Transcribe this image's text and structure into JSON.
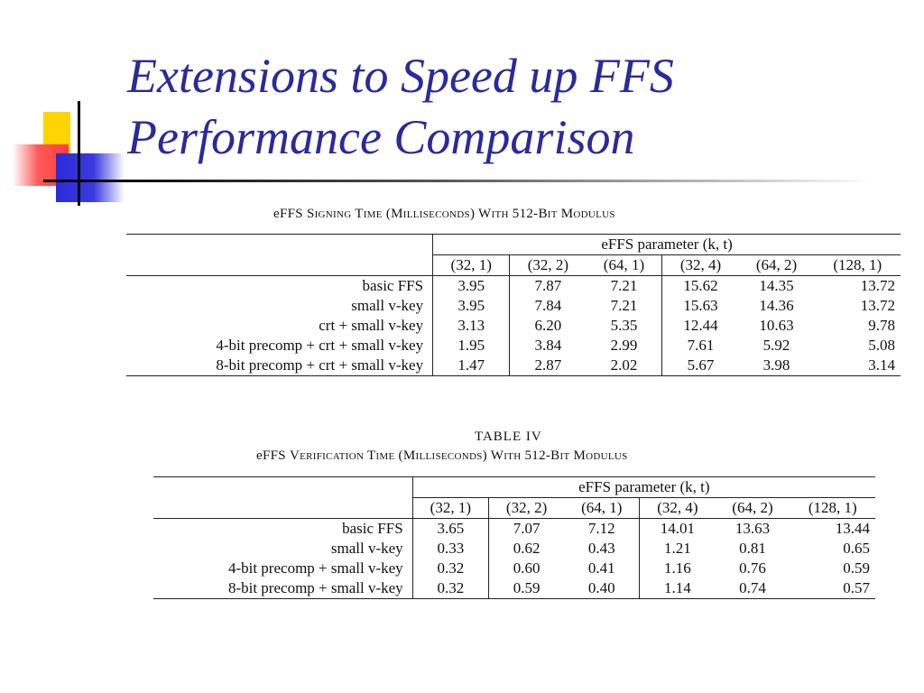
{
  "slide": {
    "title_line1": "Extensions to Speed up FFS",
    "title_line2": "Performance Comparison"
  },
  "table1": {
    "caption_prefix": "eFFS ",
    "caption_sc": "Signing Time (Milliseconds) With 512-Bit Modulus",
    "param_header": "eFFS parameter (k, t)",
    "columns": [
      "(32, 1)",
      "(32, 2)",
      "(64, 1)",
      "(32, 4)",
      "(64, 2)",
      "(128, 1)"
    ],
    "rows": [
      {
        "label": "basic FFS",
        "values": [
          "3.95",
          "7.87",
          "7.21",
          "15.62",
          "14.35",
          "13.72"
        ]
      },
      {
        "label": "small v-key",
        "values": [
          "3.95",
          "7.84",
          "7.21",
          "15.63",
          "14.36",
          "13.72"
        ]
      },
      {
        "label": "crt + small v-key",
        "values": [
          "3.13",
          "6.20",
          "5.35",
          "12.44",
          "10.63",
          "9.78"
        ]
      },
      {
        "label": "4-bit precomp + crt + small v-key",
        "values": [
          "1.95",
          "3.84",
          "2.99",
          "7.61",
          "5.92",
          "5.08"
        ]
      },
      {
        "label": "8-bit precomp + crt + small v-key",
        "values": [
          "1.47",
          "2.87",
          "2.02",
          "5.67",
          "3.98",
          "3.14"
        ]
      }
    ]
  },
  "table2": {
    "table_number": "TABLE IV",
    "caption_prefix": "eFFS ",
    "caption_sc": "Verification Time (Milliseconds) With 512-Bit Modulus",
    "param_header": "eFFS parameter (k, t)",
    "columns": [
      "(32, 1)",
      "(32, 2)",
      "(64, 1)",
      "(32, 4)",
      "(64, 2)",
      "(128, 1)"
    ],
    "rows": [
      {
        "label": "basic FFS",
        "values": [
          "3.65",
          "7.07",
          "7.12",
          "14.01",
          "13.63",
          "13.44"
        ]
      },
      {
        "label": "small v-key",
        "values": [
          "0.33",
          "0.62",
          "0.43",
          "1.21",
          "0.81",
          "0.65"
        ]
      },
      {
        "label": "4-bit precomp + small v-key",
        "values": [
          "0.32",
          "0.60",
          "0.41",
          "1.16",
          "0.76",
          "0.59"
        ]
      },
      {
        "label": "8-bit precomp + small v-key",
        "values": [
          "0.32",
          "0.59",
          "0.40",
          "1.14",
          "0.74",
          "0.57"
        ]
      }
    ]
  }
}
